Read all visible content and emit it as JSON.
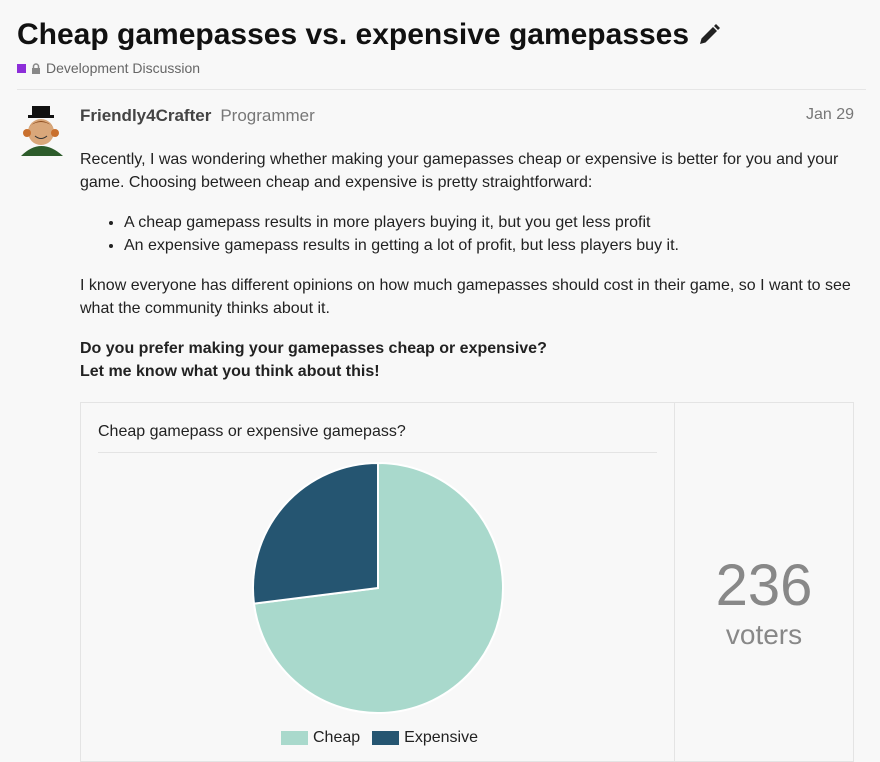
{
  "topic": {
    "title": "Cheap gamepasses vs. expensive gamepasses",
    "category": "Development Discussion",
    "category_color": "#8d2ed9"
  },
  "post": {
    "username": "Friendly4Crafter",
    "user_title": "Programmer",
    "date": "Jan 29",
    "p1": "Recently, I was wondering whether making your gamepasses cheap or expensive is better for you and your game. Choosing between cheap and expensive is pretty straightforward:",
    "bullets": [
      "A cheap gamepass results in more players buying it, but you get less profit",
      "An expensive gamepass results in getting a lot of profit, but less players buy it."
    ],
    "p2": "I know everyone has different opinions on how much gamepasses should cost in their game, so I want to see what the community thinks about it.",
    "bold1": "Do you prefer making your gamepasses cheap or expensive?",
    "bold2": "Let me know what you think about this!"
  },
  "poll": {
    "question": "Cheap gamepass or expensive gamepass?",
    "voters": "236",
    "voters_label": "voters"
  },
  "chart_data": {
    "type": "pie",
    "title": "Cheap gamepass or expensive gamepass?",
    "categories": [
      "Cheap",
      "Expensive"
    ],
    "values": [
      73,
      27
    ],
    "colors": [
      "#a9d9cc",
      "#255571"
    ],
    "legend": "bottom"
  }
}
